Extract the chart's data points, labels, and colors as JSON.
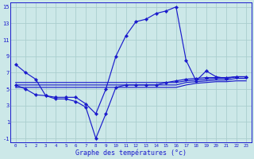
{
  "xlabel": "Graphe des températures (°c)",
  "background_color": "#cce8e8",
  "grid_color": "#aacece",
  "line_color": "#1a1acc",
  "xlim": [
    -0.5,
    23.5
  ],
  "ylim": [
    -1.5,
    15.5
  ],
  "xticks": [
    0,
    1,
    2,
    3,
    4,
    5,
    6,
    7,
    8,
    9,
    10,
    11,
    12,
    13,
    14,
    15,
    16,
    17,
    18,
    19,
    20,
    21,
    22,
    23
  ],
  "yticks": [
    -1,
    1,
    3,
    5,
    7,
    9,
    11,
    13,
    15
  ],
  "hours": [
    0,
    1,
    2,
    3,
    4,
    5,
    6,
    7,
    8,
    9,
    10,
    11,
    12,
    13,
    14,
    15,
    16,
    17,
    18,
    19,
    20,
    21,
    22,
    23
  ],
  "main_line": [
    8,
    7,
    6.2,
    4.2,
    4.0,
    4.0,
    4.0,
    3.2,
    2.0,
    5.0,
    9.0,
    11.5,
    13.2,
    13.5,
    14.2,
    14.5,
    15.0,
    8.5,
    6.0,
    7.2,
    6.5,
    6.3,
    6.5,
    6.5
  ],
  "zigzag_line": [
    5.5,
    5.0,
    4.3,
    4.2,
    3.8,
    3.8,
    3.5,
    2.8,
    -1.0,
    2.0,
    5.2,
    5.5,
    5.5,
    5.5,
    5.5,
    5.8,
    6.0,
    6.2,
    6.3,
    6.4,
    6.4,
    6.4,
    6.5,
    6.5
  ],
  "flat_line1": [
    5.8,
    5.8,
    5.8,
    5.8,
    5.8,
    5.8,
    5.8,
    5.8,
    5.8,
    5.8,
    5.8,
    5.8,
    5.8,
    5.8,
    5.8,
    5.8,
    5.8,
    6.0,
    6.1,
    6.2,
    6.3,
    6.3,
    6.5,
    6.5
  ],
  "flat_line2": [
    5.5,
    5.5,
    5.5,
    5.5,
    5.5,
    5.5,
    5.5,
    5.5,
    5.5,
    5.5,
    5.5,
    5.5,
    5.5,
    5.5,
    5.5,
    5.5,
    5.5,
    5.8,
    5.9,
    6.0,
    6.1,
    6.1,
    6.3,
    6.3
  ],
  "flat_line3": [
    5.2,
    5.2,
    5.2,
    5.2,
    5.2,
    5.2,
    5.2,
    5.2,
    5.2,
    5.2,
    5.2,
    5.2,
    5.2,
    5.2,
    5.2,
    5.2,
    5.2,
    5.5,
    5.7,
    5.8,
    5.9,
    5.9,
    6.0,
    6.0
  ],
  "xlabel_fontsize": 6,
  "tick_fontsize_x": 4.2,
  "tick_fontsize_y": 5.0
}
